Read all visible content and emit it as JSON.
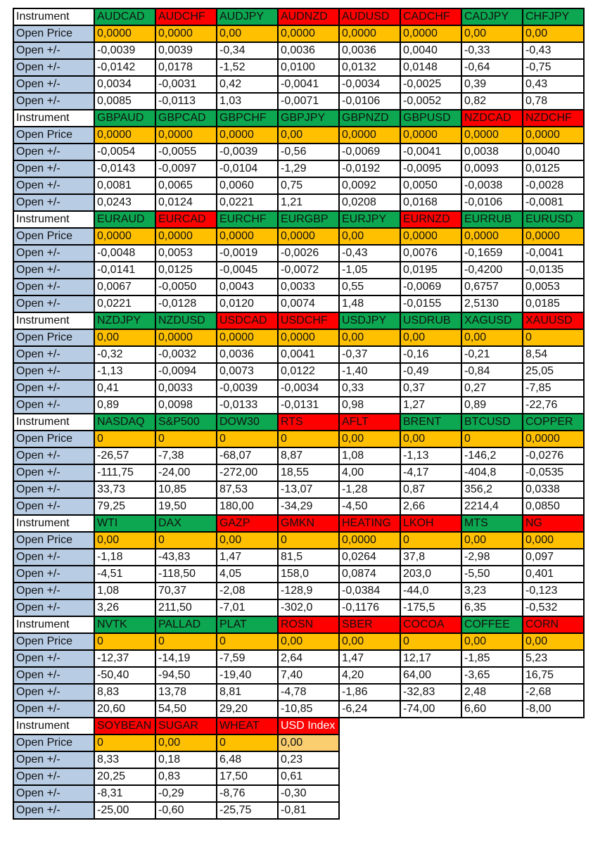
{
  "labels": {
    "instrument": "Instrument",
    "open_price": "Open Price",
    "open_change": "Open +/-"
  },
  "colors": {
    "green": "#0CA750",
    "red": "#FF0000",
    "gold": "#FFC000",
    "gold_light": "#FACD6E",
    "label_blue": "#B8CCE4",
    "white": "#FFFFFF",
    "border": "#000000",
    "header_text_dark": "#111111",
    "header_text_light": "#FFFFFF"
  },
  "blocks": [
    {
      "instruments": [
        {
          "name": "AUDCAD",
          "color": "green"
        },
        {
          "name": "AUDCHF",
          "color": "red"
        },
        {
          "name": "AUDJPY",
          "color": "green"
        },
        {
          "name": "AUDNZD",
          "color": "red"
        },
        {
          "name": "AUDUSD",
          "color": "red"
        },
        {
          "name": "CADCHF",
          "color": "red"
        },
        {
          "name": "CADJPY",
          "color": "green"
        },
        {
          "name": "CHFJPY",
          "color": "green"
        }
      ],
      "open_price": [
        "0,0000",
        "0,0000",
        "0,00",
        "0,0000",
        "0,0000",
        "0,0000",
        "0,00",
        "0,00"
      ],
      "changes": [
        [
          "-0,0039",
          "0,0039",
          "-0,34",
          "0,0036",
          "0,0036",
          "0,0040",
          "-0,33",
          "-0,43"
        ],
        [
          "-0,0142",
          "0,0178",
          "-1,52",
          "0,0100",
          "0,0132",
          "0,0148",
          "-0,64",
          "-0,75"
        ],
        [
          "0,0034",
          "-0,0031",
          "0,42",
          "-0,0041",
          "-0,0034",
          "-0,0025",
          "0,39",
          "0,43"
        ],
        [
          "0,0085",
          "-0,0113",
          "1,03",
          "-0,0071",
          "-0,0106",
          "-0,0052",
          "0,82",
          "0,78"
        ]
      ]
    },
    {
      "instruments": [
        {
          "name": "GBPAUD",
          "color": "green"
        },
        {
          "name": "GBPCAD",
          "color": "green"
        },
        {
          "name": "GBPCHF",
          "color": "green"
        },
        {
          "name": "GBPJPY",
          "color": "green"
        },
        {
          "name": "GBPNZD",
          "color": "green"
        },
        {
          "name": "GBPUSD",
          "color": "green"
        },
        {
          "name": "NZDCAD",
          "color": "red"
        },
        {
          "name": "NZDCHF",
          "color": "red"
        }
      ],
      "open_price": [
        "0,0000",
        "0,0000",
        "0,0000",
        "0,00",
        "0,0000",
        "0,0000",
        "0,0000",
        "0,0000"
      ],
      "changes": [
        [
          "-0,0054",
          "-0,0055",
          "-0,0039",
          "-0,56",
          "-0,0069",
          "-0,0041",
          "0,0038",
          "0,0040"
        ],
        [
          "-0,0143",
          "-0,0097",
          "-0,0104",
          "-1,29",
          "-0,0192",
          "-0,0095",
          "0,0093",
          "0,0125"
        ],
        [
          "0,0081",
          "0,0065",
          "0,0060",
          "0,75",
          "0,0092",
          "0,0050",
          "-0,0038",
          "-0,0028"
        ],
        [
          "0,0243",
          "0,0124",
          "0,0221",
          "1,21",
          "0,0208",
          "0,0168",
          "-0,0106",
          "-0,0081"
        ]
      ]
    },
    {
      "instruments": [
        {
          "name": "EURAUD",
          "color": "green"
        },
        {
          "name": "EURCAD",
          "color": "red"
        },
        {
          "name": "EURCHF",
          "color": "green"
        },
        {
          "name": "EURGBP",
          "color": "green"
        },
        {
          "name": "EURJPY",
          "color": "green"
        },
        {
          "name": "EURNZD",
          "color": "red"
        },
        {
          "name": "EURRUB",
          "color": "green"
        },
        {
          "name": "EURUSD",
          "color": "green"
        }
      ],
      "open_price": [
        "0,0000",
        "0,0000",
        "0,0000",
        "0,0000",
        "0,00",
        "0,0000",
        "0,0000",
        "0,0000"
      ],
      "changes": [
        [
          "-0,0048",
          "0,0053",
          "-0,0019",
          "-0,0026",
          "-0,43",
          "0,0076",
          "-0,1659",
          "-0,0041"
        ],
        [
          "-0,0141",
          "0,0125",
          "-0,0045",
          "-0,0072",
          "-1,05",
          "0,0195",
          "-0,4200",
          "-0,0135"
        ],
        [
          "0,0067",
          "-0,0050",
          "0,0043",
          "0,0033",
          "0,55",
          "-0,0069",
          "0,6757",
          "0,0053"
        ],
        [
          "0,0221",
          "-0,0128",
          "0,0120",
          "0,0074",
          "1,48",
          "-0,0155",
          "2,5130",
          "0,0185"
        ]
      ]
    },
    {
      "instruments": [
        {
          "name": "NZDJPY",
          "color": "green"
        },
        {
          "name": "NZDUSD",
          "color": "green"
        },
        {
          "name": "USDCAD",
          "color": "red"
        },
        {
          "name": "USDCHF",
          "color": "red"
        },
        {
          "name": "USDJPY",
          "color": "green"
        },
        {
          "name": "USDRUB",
          "color": "green"
        },
        {
          "name": "XAGUSD",
          "color": "green"
        },
        {
          "name": "XAUUSD",
          "color": "red"
        }
      ],
      "open_price": [
        "0,00",
        "0,0000",
        "0,0000",
        "0,0000",
        "0,00",
        "0,00",
        "0,00",
        "0"
      ],
      "changes": [
        [
          "-0,32",
          "-0,0032",
          "0,0036",
          "0,0041",
          "-0,37",
          "-0,16",
          "-0,21",
          "8,54"
        ],
        [
          "-1,13",
          "-0,0094",
          "0,0073",
          "0,0122",
          "-1,40",
          "-0,49",
          "-0,84",
          "25,05"
        ],
        [
          "0,41",
          "0,0033",
          "-0,0039",
          "-0,0034",
          "0,33",
          "0,37",
          "0,27",
          "-7,85"
        ],
        [
          "0,89",
          "0,0098",
          "-0,0133",
          "-0,0131",
          "0,98",
          "1,27",
          "0,89",
          "-22,76"
        ]
      ]
    },
    {
      "instruments": [
        {
          "name": "NASDAQ",
          "color": "green"
        },
        {
          "name": "S&P500",
          "color": "green"
        },
        {
          "name": "DOW30",
          "color": "green"
        },
        {
          "name": "RTS",
          "color": "red"
        },
        {
          "name": "AFLT",
          "color": "red"
        },
        {
          "name": "BRENT",
          "color": "green"
        },
        {
          "name": "BTCUSD",
          "color": "green"
        },
        {
          "name": "COPPER",
          "color": "green"
        }
      ],
      "open_price": [
        "0",
        "0",
        "0",
        "0",
        "0,00",
        "0,00",
        "0",
        "0,0000"
      ],
      "changes": [
        [
          "-26,57",
          "-7,38",
          "-68,07",
          "8,87",
          "1,08",
          "-1,13",
          "-146,2",
          "-0,0276"
        ],
        [
          "-111,75",
          "-24,00",
          "-272,00",
          "18,55",
          "4,00",
          "-4,17",
          "-404,8",
          "-0,0535"
        ],
        [
          "33,73",
          "10,85",
          "87,53",
          "-13,07",
          "-1,28",
          "0,87",
          "356,2",
          "0,0338"
        ],
        [
          "79,25",
          "19,50",
          "180,00",
          "-34,29",
          "-4,50",
          "2,66",
          "2214,4",
          "0,0850"
        ]
      ]
    },
    {
      "instruments": [
        {
          "name": "WTI",
          "color": "green"
        },
        {
          "name": "DAX",
          "color": "green"
        },
        {
          "name": "GAZP",
          "color": "red"
        },
        {
          "name": "GMKN",
          "color": "red"
        },
        {
          "name": "HEATING",
          "color": "red"
        },
        {
          "name": "LKOH",
          "color": "red"
        },
        {
          "name": "MTS",
          "color": "green"
        },
        {
          "name": "NG",
          "color": "red"
        }
      ],
      "open_price": [
        "0,00",
        "0",
        "0,00",
        "0",
        "0,0000",
        "0",
        "0,00",
        "0,000"
      ],
      "changes": [
        [
          "-1,18",
          "-43,83",
          "1,47",
          "81,5",
          "0,0264",
          "37,8",
          "-2,98",
          "0,097"
        ],
        [
          "-4,51",
          "-118,50",
          "4,05",
          "158,0",
          "0,0874",
          "203,0",
          "-5,50",
          "0,401"
        ],
        [
          "1,08",
          "70,37",
          "-2,08",
          "-128,9",
          "-0,0384",
          "-44,0",
          "3,23",
          "-0,123"
        ],
        [
          "3,26",
          "211,50",
          "-7,01",
          "-302,0",
          "-0,1176",
          "-175,5",
          "6,35",
          "-0,532"
        ]
      ]
    },
    {
      "instruments": [
        {
          "name": "NVTK",
          "color": "green"
        },
        {
          "name": "PALLAD",
          "color": "green"
        },
        {
          "name": "PLAT",
          "color": "green"
        },
        {
          "name": "ROSN",
          "color": "red"
        },
        {
          "name": "SBER",
          "color": "red"
        },
        {
          "name": "COCOA",
          "color": "red"
        },
        {
          "name": "COFFEE",
          "color": "green"
        },
        {
          "name": "CORN",
          "color": "red"
        }
      ],
      "open_price": [
        "0",
        "0",
        "0",
        "0,00",
        "0,00",
        "0",
        "0,00",
        "0,00"
      ],
      "changes": [
        [
          "-12,37",
          "-14,19",
          "-7,59",
          "2,64",
          "1,47",
          "12,17",
          "-1,85",
          "5,23"
        ],
        [
          "-50,40",
          "-94,50",
          "-19,40",
          "7,40",
          "4,20",
          "64,00",
          "-3,65",
          "16,75"
        ],
        [
          "8,83",
          "13,78",
          "8,81",
          "-4,78",
          "-1,86",
          "-32,83",
          "2,48",
          "-2,68"
        ],
        [
          "20,60",
          "54,50",
          "29,20",
          "-10,85",
          "-6,24",
          "-74,00",
          "6,60",
          "-8,00"
        ]
      ]
    },
    {
      "instruments": [
        {
          "name": "SOYBEAN",
          "color": "red"
        },
        {
          "name": "SUGAR",
          "color": "red"
        },
        {
          "name": "WHEAT",
          "color": "red"
        },
        {
          "name": "USD Index",
          "color": "red",
          "text": "light",
          "price_style": "light"
        }
      ],
      "open_price": [
        "0",
        "0,00",
        "0",
        "0,00"
      ],
      "changes": [
        [
          "8,33",
          "0,18",
          "6,48",
          "0,23"
        ],
        [
          "20,25",
          "0,83",
          "17,50",
          "0,61"
        ],
        [
          "-8,31",
          "-0,29",
          "-8,76",
          "-0,30"
        ],
        [
          "-25,00",
          "-0,60",
          "-25,75",
          "-0,81"
        ]
      ]
    }
  ]
}
